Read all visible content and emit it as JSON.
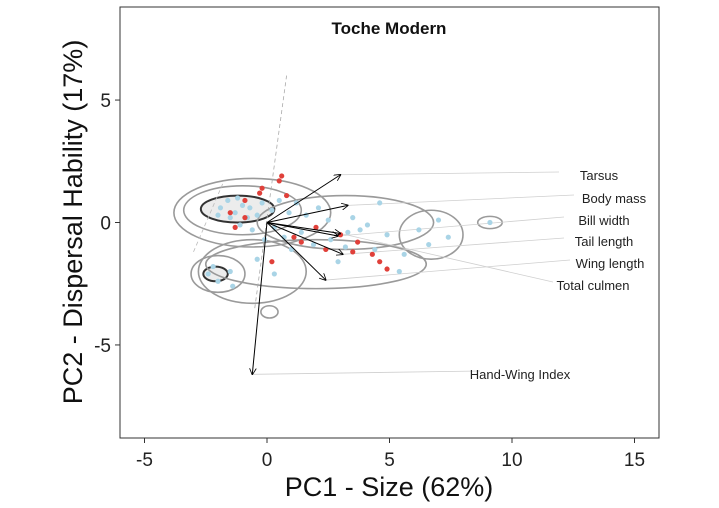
{
  "chart_data": {
    "type": "scatter",
    "title": "Toche Modern",
    "xlabel": "PC1 - Size (62%)",
    "ylabel": "PC2 - Dispersal Hability (17%)",
    "xlim": [
      -6,
      16
    ],
    "ylim": [
      -8.8,
      8.8
    ],
    "xticks": [
      -5,
      0,
      5,
      10,
      15
    ],
    "yticks": [
      -5,
      0,
      5
    ],
    "grid": false,
    "colors": {
      "points_blue": "#a9d4e6",
      "points_red": "#e0403a",
      "contour": "#9a9a9a",
      "contour_dark": "#333333",
      "fill": "#d9d9d9",
      "vector": "#000000",
      "leader": "#cfcfcf"
    },
    "loadings": [
      {
        "label": "Tarsus",
        "x": 3.0,
        "y": 1.95
      },
      {
        "label": "Body mass",
        "x": 3.3,
        "y": 0.7
      },
      {
        "label": "Bill width",
        "x": 2.9,
        "y": -0.55
      },
      {
        "label": "Tail length",
        "x": 3.1,
        "y": -1.3
      },
      {
        "label": "Wing length",
        "x": 2.4,
        "y": -2.35
      },
      {
        "label": "Total culmen",
        "x": 3.0,
        "y": -0.45
      },
      {
        "label": "Hand-Wing Index",
        "x": -0.6,
        "y": -6.2
      }
    ],
    "points_blue": [
      [
        -1.9,
        0.6
      ],
      [
        -1.6,
        0.9
      ],
      [
        -1.3,
        0.4
      ],
      [
        -1.0,
        0.7
      ],
      [
        -0.8,
        0.2
      ],
      [
        -1.5,
        0.2
      ],
      [
        -2.0,
        0.3
      ],
      [
        -1.2,
        1.0
      ],
      [
        -0.7,
        0.6
      ],
      [
        -0.4,
        0.3
      ],
      [
        -0.2,
        0.8
      ],
      [
        0.2,
        0.5
      ],
      [
        0.5,
        0.9
      ],
      [
        0.9,
        0.4
      ],
      [
        1.2,
        0.8
      ],
      [
        1.6,
        0.3
      ],
      [
        2.1,
        0.6
      ],
      [
        2.5,
        0.1
      ],
      [
        -1.1,
        -0.1
      ],
      [
        -0.6,
        -0.3
      ],
      [
        0.3,
        -0.2
      ],
      [
        0.7,
        -0.6
      ],
      [
        1.4,
        -0.4
      ],
      [
        1.9,
        -0.9
      ],
      [
        2.6,
        -0.7
      ],
      [
        3.2,
        -1.0
      ],
      [
        3.5,
        0.2
      ],
      [
        3.8,
        -0.3
      ],
      [
        4.4,
        -1.1
      ],
      [
        4.9,
        -0.5
      ],
      [
        5.4,
        -2.0
      ],
      [
        5.6,
        -1.3
      ],
      [
        6.2,
        -0.3
      ],
      [
        6.6,
        -0.9
      ],
      [
        7.0,
        0.1
      ],
      [
        7.4,
        -0.6
      ],
      [
        9.1,
        0.0
      ],
      [
        -2.4,
        -2.1
      ],
      [
        -2.0,
        -2.4
      ],
      [
        -1.5,
        -2.0
      ],
      [
        -1.4,
        -2.6
      ],
      [
        -2.2,
        -1.8
      ],
      [
        0.3,
        -2.1
      ],
      [
        -0.4,
        -1.5
      ],
      [
        4.6,
        0.8
      ],
      [
        2.9,
        -1.6
      ],
      [
        1.0,
        -1.1
      ],
      [
        -0.1,
        -0.7
      ],
      [
        3.3,
        -0.4
      ],
      [
        4.1,
        -0.1
      ]
    ],
    "points_red": [
      [
        -1.5,
        0.4
      ],
      [
        -0.9,
        0.9
      ],
      [
        -0.3,
        1.2
      ],
      [
        0.5,
        1.7
      ],
      [
        0.6,
        1.9
      ],
      [
        -0.2,
        1.4
      ],
      [
        0.8,
        1.1
      ],
      [
        1.1,
        -0.6
      ],
      [
        2.0,
        -0.2
      ],
      [
        3.0,
        -0.5
      ],
      [
        3.5,
        -1.2
      ],
      [
        4.3,
        -1.3
      ],
      [
        4.6,
        -1.6
      ],
      [
        4.9,
        -1.9
      ],
      [
        -1.3,
        -0.2
      ],
      [
        1.4,
        -0.8
      ],
      [
        2.4,
        -1.1
      ],
      [
        0.2,
        -1.6
      ],
      [
        -0.9,
        0.2
      ],
      [
        3.7,
        -0.8
      ]
    ]
  }
}
